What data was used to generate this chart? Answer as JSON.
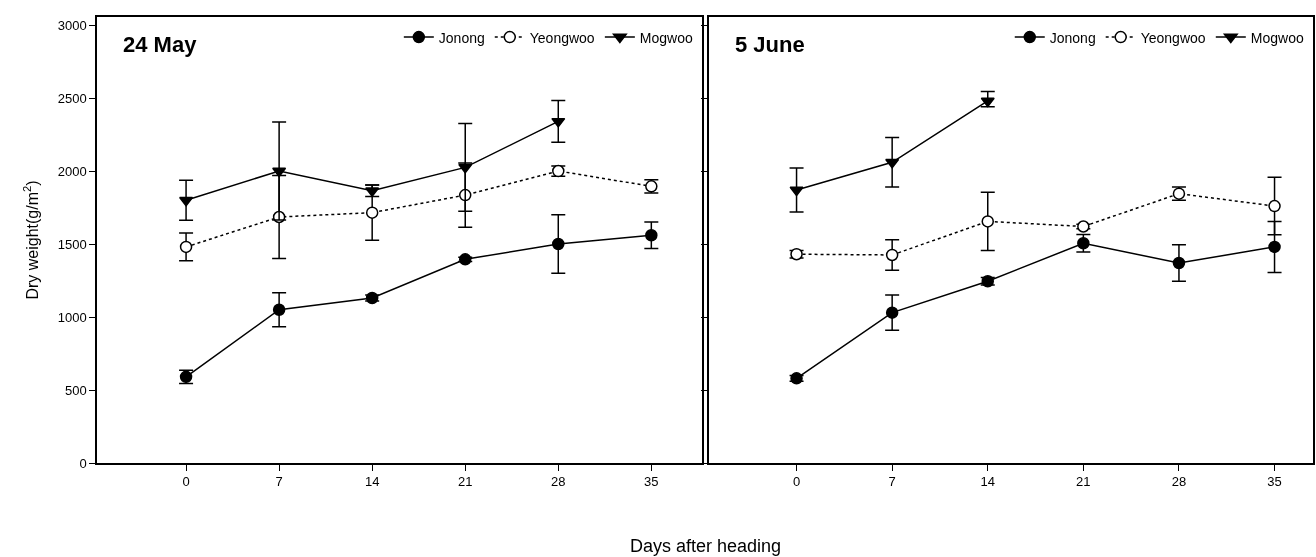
{
  "chart_data": [
    {
      "type": "line",
      "title": "24 May",
      "ylabel": "Dry weight(g/m$^{2}$)",
      "xlabel": "Days after heading",
      "xlim": [
        -6.7,
        38.8
      ],
      "xticks": [
        0,
        7,
        14,
        21,
        28,
        35
      ],
      "ylim": [
        0,
        3055
      ],
      "yticks": [
        0,
        500,
        1000,
        1500,
        2000,
        2500,
        3000
      ],
      "legend": "top right",
      "series": [
        {
          "name": "Jonong",
          "color": "#000000",
          "marker": "circle",
          "line_style": "solid",
          "x": [
            0,
            7,
            14,
            21,
            28,
            35
          ],
          "values": [
            590,
            1050,
            1130,
            1395,
            1500,
            1560
          ],
          "errors": [
            45,
            117,
            20,
            15,
            200,
            90
          ]
        },
        {
          "name": "Yeongwoo",
          "color": "#000000",
          "colors": [
            "#ffffff",
            "#ffffff",
            "#ffffff",
            "#ffffff",
            "#ffffff",
            "#ffffff"
          ],
          "marker": "circle",
          "line_style": "dotted",
          "x": [
            0,
            7,
            14,
            21,
            28,
            35
          ],
          "values": [
            1480,
            1685,
            1715,
            1835,
            2000,
            1895
          ],
          "errors": [
            95,
            285,
            190,
            220,
            35,
            45
          ]
        },
        {
          "name": "Mogwoo",
          "color": "#000000",
          "marker": "triangle-down",
          "line_style": "solid",
          "x": [
            0,
            7,
            14,
            21,
            28
          ],
          "values": [
            1800,
            2000,
            1865,
            2025,
            2340
          ],
          "errors": [
            137,
            335,
            40,
            300,
            143
          ]
        }
      ]
    },
    {
      "type": "line",
      "title": "5 June",
      "xlim": [
        -6.4,
        37.8
      ],
      "xticks": [
        0,
        7,
        14,
        21,
        28,
        35
      ],
      "ylim": [
        0,
        3055
      ],
      "yticks": [
        {
          "value": 0,
          "label": null
        },
        {
          "value": 500,
          "label": null
        },
        {
          "value": 1000,
          "label": null
        },
        {
          "value": 1500,
          "label": null
        },
        {
          "value": 2000,
          "label": null
        },
        {
          "value": 2500,
          "label": null
        },
        {
          "value": 3000,
          "label": null
        }
      ],
      "legend": "top right",
      "tick_labels": "x",
      "series": [
        {
          "name": "Jonong",
          "color": "#000000",
          "marker": "circle",
          "line_style": "solid",
          "x": [
            0,
            7,
            14,
            21,
            28,
            35
          ],
          "values": [
            580,
            1030,
            1245,
            1505,
            1370,
            1480
          ],
          "errors": [
            20,
            120,
            25,
            60,
            125,
            175
          ]
        },
        {
          "name": "Yeongwoo",
          "color": "#000000",
          "colors": [
            "#ffffff",
            "#ffffff",
            "#ffffff",
            "#ffffff",
            "#ffffff",
            "#ffffff"
          ],
          "marker": "circle",
          "line_style": "dotted",
          "x": [
            0,
            7,
            14,
            21,
            28,
            35
          ],
          "values": [
            1430,
            1425,
            1655,
            1620,
            1845,
            1760
          ],
          "errors": [
            25,
            105,
            200,
            15,
            45,
            197
          ]
        },
        {
          "name": "Mogwoo",
          "color": "#000000",
          "marker": "triangle-down",
          "line_style": "solid",
          "x": [
            0,
            7,
            14
          ],
          "values": [
            1870,
            2060,
            2480
          ],
          "errors": [
            150,
            170,
            [
              2440,
              2545
            ]
          ]
        }
      ]
    }
  ]
}
